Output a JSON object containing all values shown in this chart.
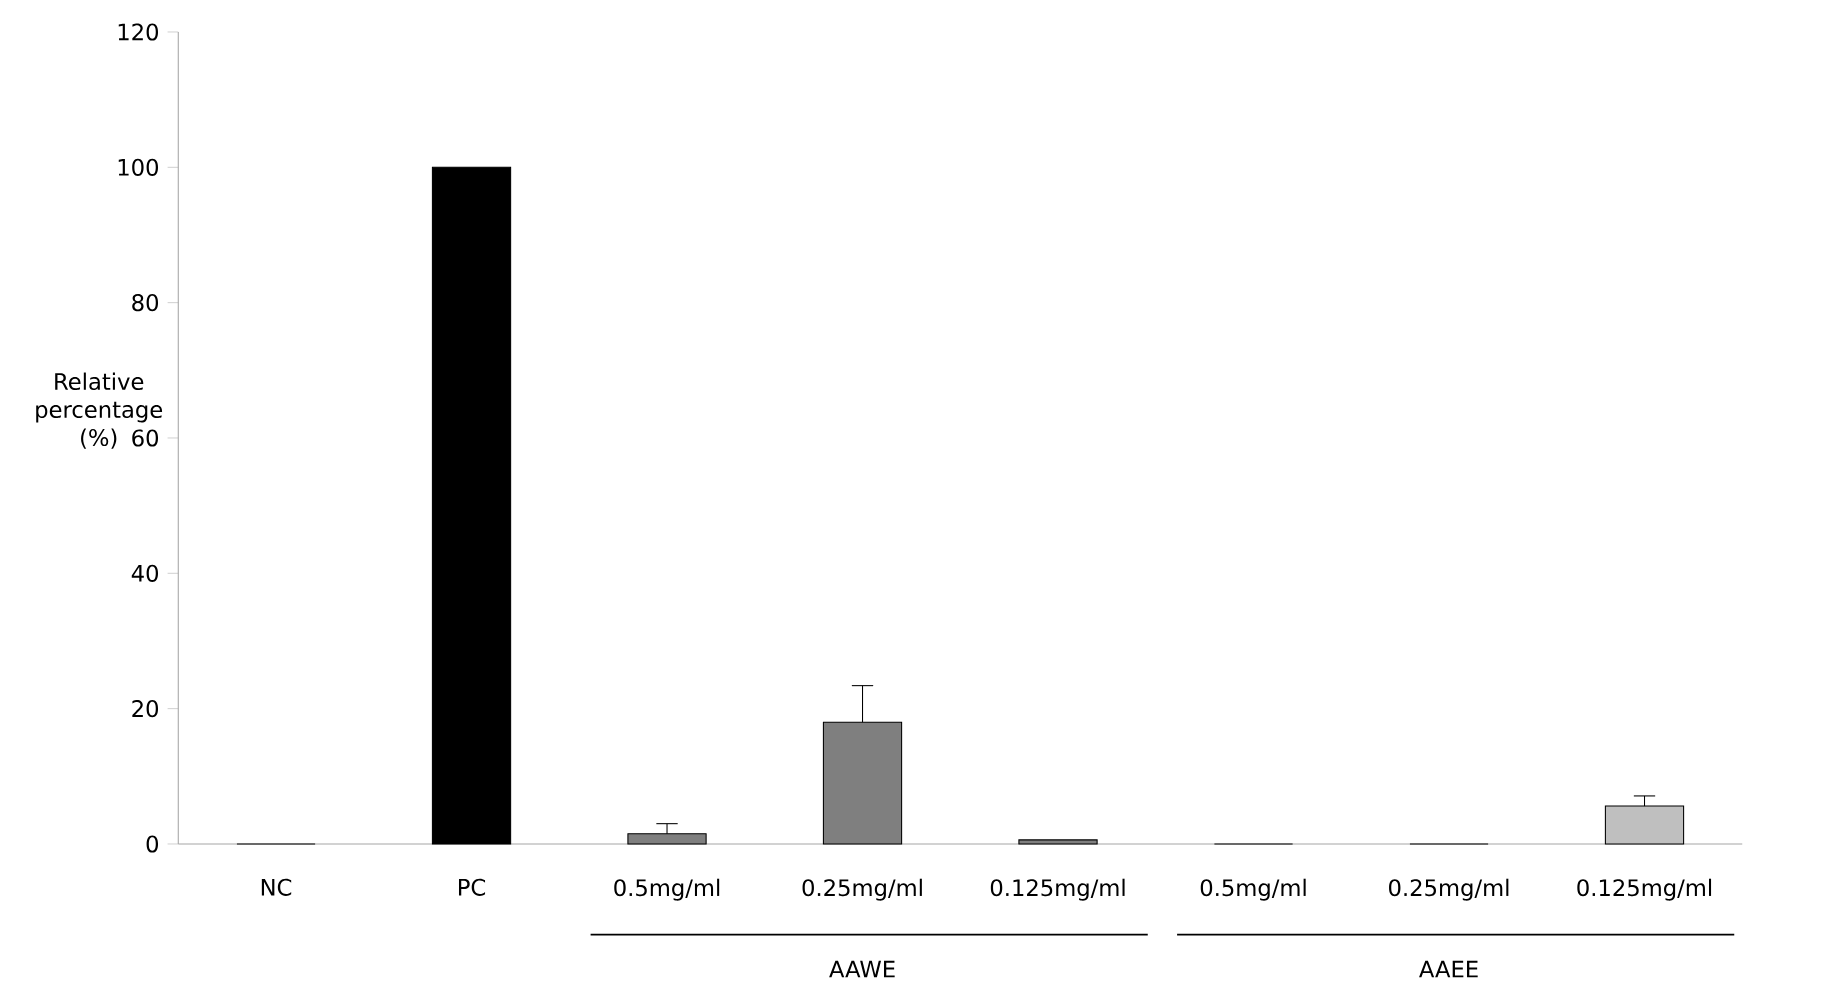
{
  "chart_data": {
    "type": "bar",
    "ylabel": "Relative percentage (%)",
    "categories": [
      "NC",
      "PC",
      "0.5mg/ml",
      "0.25mg/ml",
      "0.125mg/ml",
      "0.5mg/ml",
      "0.25mg/ml",
      "0.125mg/ml"
    ],
    "values": [
      0,
      100,
      1.5,
      18,
      0.6,
      0,
      0,
      5.6
    ],
    "errors": [
      null,
      null,
      1.5,
      5.4,
      null,
      null,
      null,
      1.5
    ],
    "colors": [
      "#ffffff",
      "#000000",
      "#7f7f7f",
      "#7f7f7f",
      "#7f7f7f",
      "#bfbfbf",
      "#bfbfbf",
      "#bfbfbf"
    ],
    "ylim": [
      0,
      120
    ],
    "yticks": [
      0,
      20,
      40,
      60,
      80,
      100,
      120
    ],
    "annotations": [
      "AAWE",
      "AAEE"
    ]
  }
}
